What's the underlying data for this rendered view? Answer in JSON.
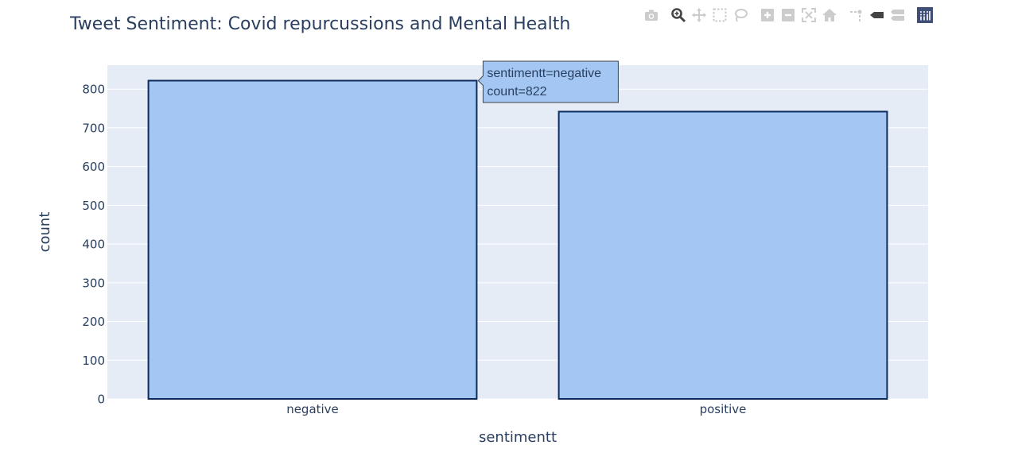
{
  "chart_data": {
    "type": "bar",
    "title": "Tweet Sentiment: Covid repurcussions and Mental Health",
    "xlabel": "sentimentt",
    "ylabel": "count",
    "categories": [
      "negative",
      "positive"
    ],
    "values": [
      822,
      742
    ],
    "ylim": [
      0,
      862
    ],
    "yticks": [
      0,
      100,
      200,
      300,
      400,
      500,
      600,
      700,
      800
    ],
    "grid": true,
    "bar_color": "#a3c7f2",
    "bar_edge_color": "#0d2a5c",
    "plot_bg_color": "#e5ecf6",
    "hover": {
      "category": "negative",
      "line1": "sentimentt=negative",
      "line2": "count=822"
    }
  },
  "modebar": {
    "buttons": [
      "camera-icon",
      "zoom-icon",
      "pan-icon",
      "box-select-icon",
      "lasso-icon",
      "zoom-in-icon",
      "zoom-out-icon",
      "autoscale-icon",
      "reset-axes-icon",
      "spike-lines-icon",
      "hover-closest-icon",
      "hover-compare-icon",
      "plotly-logo-icon"
    ],
    "active_color": "#444444",
    "inactive_color": "#cccccc",
    "logo_color": "#3f4f75"
  }
}
